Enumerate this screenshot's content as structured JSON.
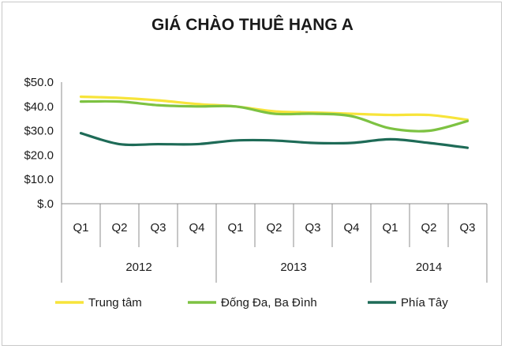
{
  "chart_data": {
    "type": "line",
    "title": "GIÁ CHÀO THUÊ HẠNG A",
    "ylim": [
      0,
      50
    ],
    "yticks": [
      0,
      10,
      20,
      30,
      40,
      50
    ],
    "ytick_labels": [
      "$.0",
      "$10.0",
      "$20.0",
      "$30.0",
      "$40.0",
      "$50.0"
    ],
    "categories": [
      "Q1",
      "Q2",
      "Q3",
      "Q4",
      "Q1",
      "Q2",
      "Q3",
      "Q4",
      "Q1",
      "Q2",
      "Q3"
    ],
    "groups": [
      {
        "label": "2012",
        "count": 4
      },
      {
        "label": "2013",
        "count": 4
      },
      {
        "label": "2014",
        "count": 3
      }
    ],
    "grid": false,
    "legend": "bottom",
    "series": [
      {
        "name": "Trung tâm",
        "color": "#f7e43a",
        "values": [
          44.0,
          43.5,
          42.5,
          41.0,
          40.0,
          38.0,
          37.5,
          37.0,
          36.5,
          36.5,
          34.5
        ]
      },
      {
        "name": "Đống Đa, Ba Đình",
        "color": "#7dc242",
        "values": [
          42.0,
          42.0,
          40.5,
          40.0,
          40.0,
          37.0,
          37.0,
          36.0,
          31.0,
          30.0,
          34.0
        ]
      },
      {
        "name": "Phía Tây",
        "color": "#1e6b57",
        "values": [
          29.0,
          24.5,
          24.5,
          24.5,
          26.0,
          26.0,
          25.0,
          25.0,
          26.5,
          25.0,
          23.0
        ]
      }
    ]
  }
}
